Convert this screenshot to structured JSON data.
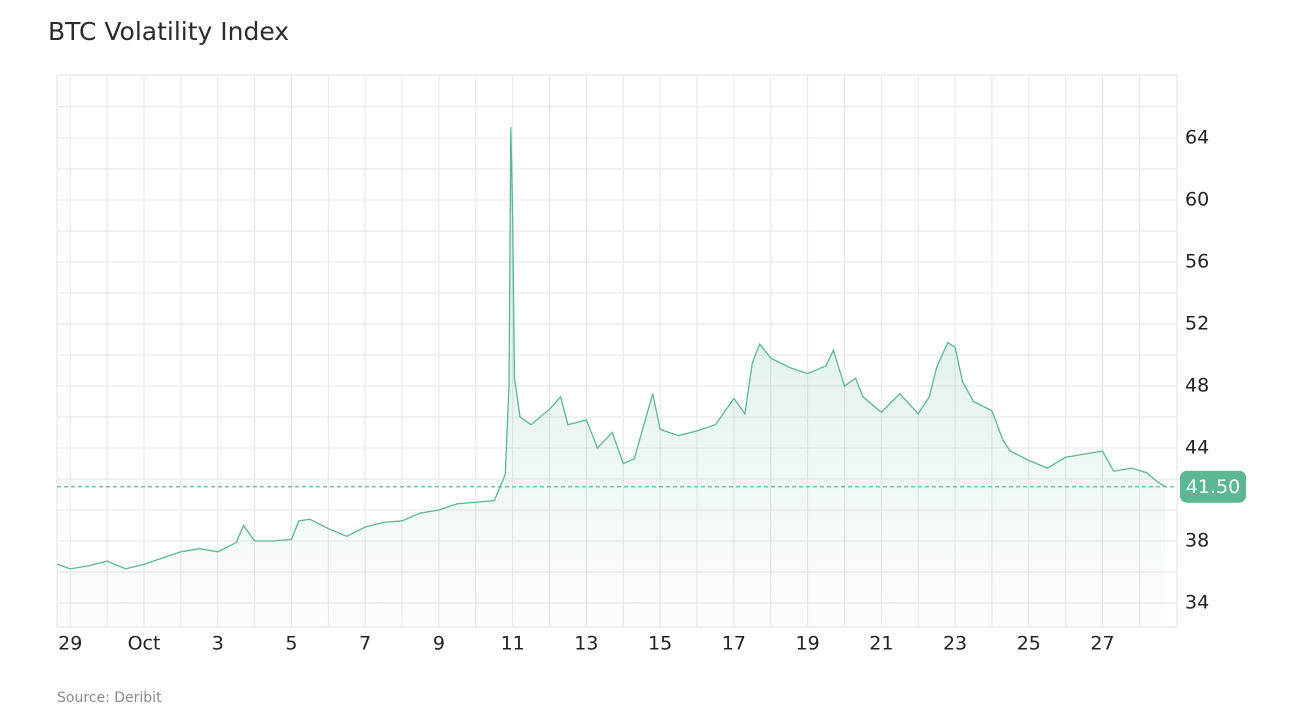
{
  "chart_data": {
    "type": "line",
    "title": "BTC Volatility Index",
    "source": "Source: Deribit",
    "x": [
      -1.36,
      -1,
      -0.5,
      0,
      0.5,
      1,
      1.5,
      2,
      2.5,
      3,
      3.5,
      3.7,
      4,
      4.5,
      5,
      5.2,
      5.5,
      6,
      6.5,
      7,
      7.5,
      8,
      8.5,
      9,
      9.5,
      10,
      10.5,
      10.8,
      10.9,
      10.95,
      11,
      11.05,
      11.2,
      11.5,
      12,
      12.3,
      12.5,
      13,
      13.3,
      13.7,
      14,
      14.3,
      14.5,
      14.8,
      15,
      15.5,
      16,
      16.5,
      17,
      17.3,
      17.5,
      17.7,
      18,
      18.5,
      19,
      19.5,
      19.7,
      20,
      20.3,
      20.5,
      21,
      21.5,
      22,
      22.3,
      22.5,
      22.8,
      23,
      23.2,
      23.5,
      24,
      24.3,
      24.5,
      25,
      25.5,
      26,
      26.5,
      27,
      27.3,
      27.8,
      28.2,
      28.5,
      28.7
    ],
    "series": [
      {
        "name": "BTC Volatility Index",
        "color": "#5cb891",
        "values": [
          36.5,
          36.2,
          36.4,
          36.7,
          36.2,
          36.5,
          36.9,
          37.3,
          37.5,
          37.3,
          37.9,
          39,
          38,
          38,
          38.1,
          39.3,
          39.4,
          38.8,
          38.3,
          38.9,
          39.2,
          39.3,
          39.8,
          40,
          40.4,
          40.5,
          40.6,
          42.3,
          48,
          64.7,
          59,
          48.5,
          46,
          45.5,
          46.5,
          47.3,
          45.5,
          45.8,
          44,
          45,
          43,
          43.3,
          45,
          47.5,
          45.2,
          44.8,
          45.1,
          45.5,
          47.2,
          46.2,
          49.5,
          50.7,
          49.8,
          49.2,
          48.8,
          49.3,
          50.3,
          48,
          48.5,
          47.3,
          46.3,
          47.5,
          46.2,
          47.3,
          49.2,
          50.8,
          50.5,
          48.3,
          47,
          46.4,
          44.5,
          43.8,
          43.2,
          42.7,
          43.4,
          43.6,
          43.8,
          42.5,
          42.7,
          42.4,
          41.8,
          41.5
        ]
      }
    ],
    "current": {
      "value": 41.5,
      "label": "41.50"
    },
    "xlim": [
      -1.36,
      29.02
    ],
    "xticks": [
      {
        "value": -1,
        "label": "29"
      },
      {
        "value": 1,
        "label": "Oct"
      },
      3,
      5,
      7,
      9,
      11,
      13,
      15,
      17,
      19,
      21,
      23,
      25,
      27
    ],
    "minor_xticks": [
      0,
      2,
      4,
      6,
      8,
      10,
      12,
      14,
      16,
      18,
      20,
      22,
      24,
      26,
      28
    ],
    "ylim": [
      32.45,
      68.06
    ],
    "yticks": [
      34,
      38,
      44,
      48,
      52,
      56,
      60,
      64
    ],
    "minor_yticks": [
      36,
      40,
      42,
      46,
      50,
      54,
      58,
      62,
      66
    ],
    "grid": true
  }
}
